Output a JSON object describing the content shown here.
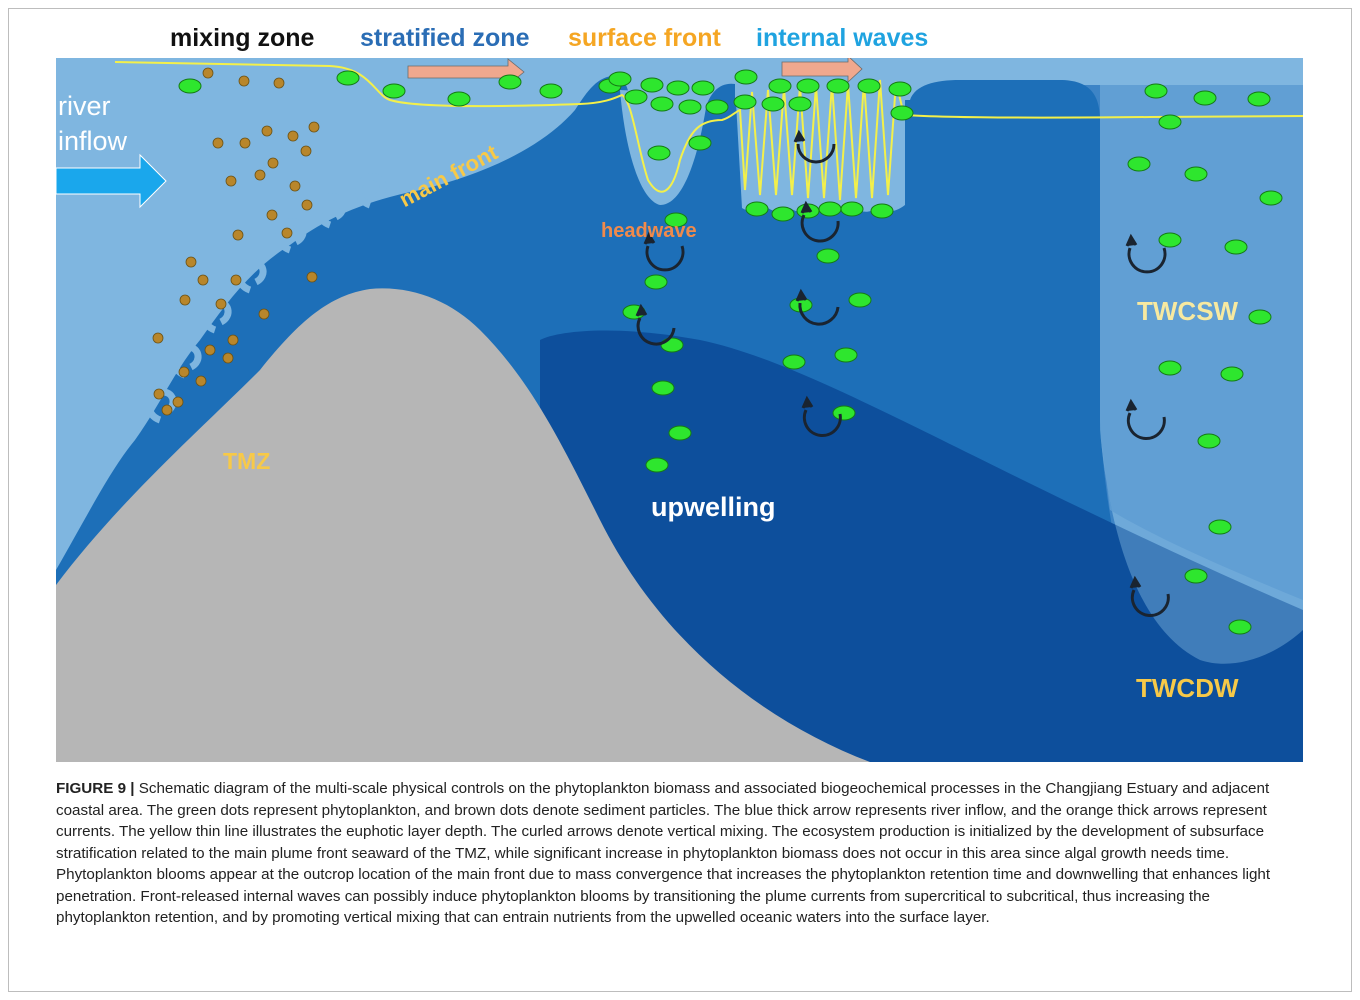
{
  "headers": {
    "mixing_zone": "mixing zone",
    "stratified_zone": "stratified zone",
    "surface_front": "surface front",
    "internal_waves": "internal waves"
  },
  "labels": {
    "river_inflow_line1": "river",
    "river_inflow_line2": "inflow",
    "main_front": "main front",
    "headwave": "headwave",
    "tmz": "TMZ",
    "upwelling": "upwelling",
    "twcsw": "TWCSW",
    "twcdw": "TWCDW"
  },
  "caption": {
    "figure_label": "FIGURE 9 |",
    "text": "Schematic diagram of the multi-scale physical controls on the phytoplankton biomass and associated biogeochemical processes in the Changjiang Estuary and adjacent coastal area. The green dots represent phytoplankton, and brown dots denote sediment particles. The blue thick arrow represents river inflow, and the orange thick arrows represent currents. The yellow thin line illustrates the euphotic layer depth. The curled arrows denote vertical mixing. The ecosystem production is initialized by the development of subsurface stratification related to the main plume front seaward of the TMZ, while significant increase in phytoplankton biomass does not occur in this area since algal growth needs time. Phytoplankton blooms appear at the outcrop location of the main front due to mass convergence that increases the phytoplankton retention time and downwelling that enhances light penetration. Front-released internal waves can possibly induce phytoplankton blooms by transitioning the plume currents from supercritical to subcritical, thus increasing the phytoplankton retention, and by promoting vertical mixing that can entrain nutrients from the upwelled oceanic waters into the surface layer."
  },
  "colors": {
    "mixing_zone": "#111111",
    "stratified_zone": "#2a6db5",
    "surface_front": "#f5a623",
    "internal_waves": "#1fa3e0",
    "light_water": "#7fb6e0",
    "mid_water": "#1d6fb8",
    "deep_water": "#0d4f9c",
    "twcsw_water": "#3d84c6",
    "seabed": "#b6b6b6",
    "phytoplankton": "#2ee62e",
    "sediment": "#b8862b",
    "euphotic_line": "#f3f04a",
    "river_arrow": "#1aa7ec",
    "current_arrow": "#f0a88e",
    "label_yellow": "#f7c948",
    "label_orange": "#f08a4b"
  }
}
